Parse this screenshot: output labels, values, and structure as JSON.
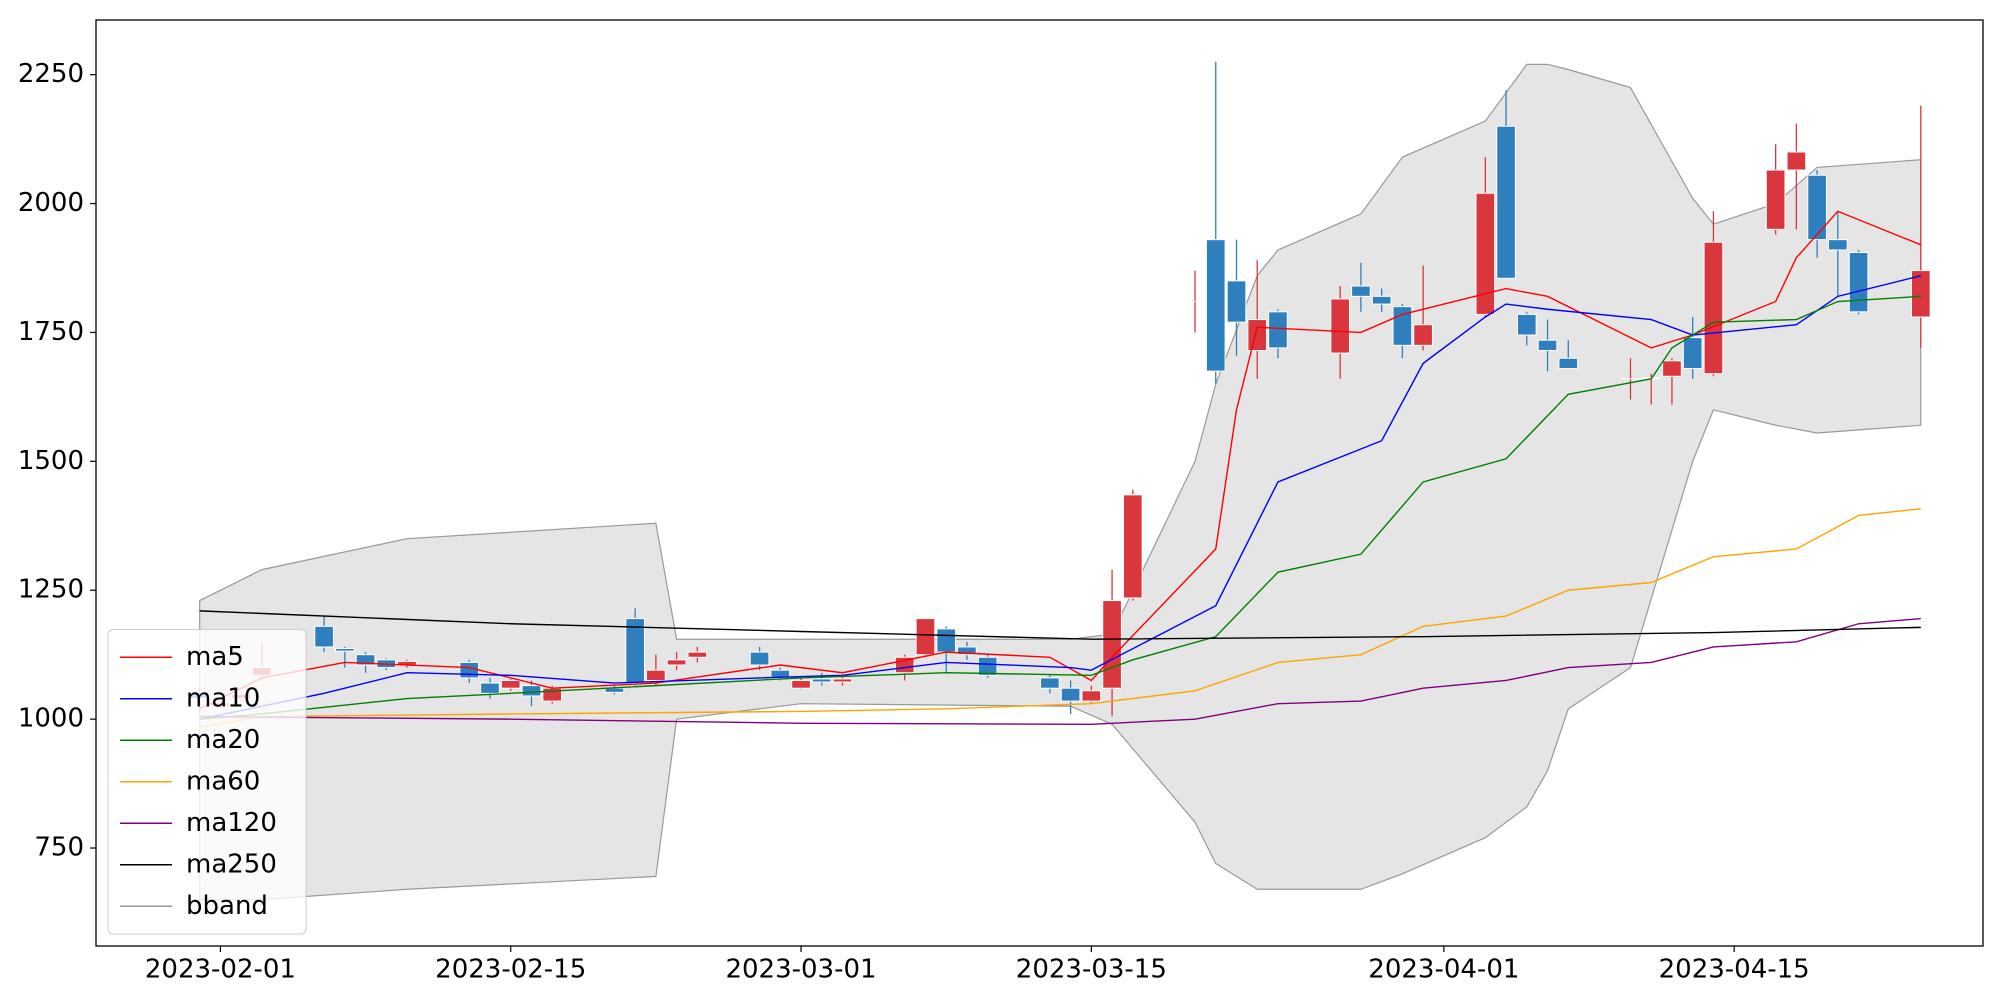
{
  "chart_data": {
    "type": "candlestick",
    "x": [
      "2023-01-31",
      "2023-02-01",
      "2023-02-02",
      "2023-02-03",
      "2023-02-06",
      "2023-02-07",
      "2023-02-08",
      "2023-02-09",
      "2023-02-10",
      "2023-02-13",
      "2023-02-14",
      "2023-02-15",
      "2023-02-16",
      "2023-02-17",
      "2023-02-20",
      "2023-02-21",
      "2023-02-22",
      "2023-02-23",
      "2023-02-24",
      "2023-02-27",
      "2023-02-28",
      "2023-03-01",
      "2023-03-02",
      "2023-03-03",
      "2023-03-06",
      "2023-03-07",
      "2023-03-08",
      "2023-03-09",
      "2023-03-10",
      "2023-03-13",
      "2023-03-14",
      "2023-03-15",
      "2023-03-16",
      "2023-03-17",
      "2023-03-20",
      "2023-03-21",
      "2023-03-22",
      "2023-03-23",
      "2023-03-24",
      "2023-03-27",
      "2023-03-28",
      "2023-03-29",
      "2023-03-30",
      "2023-03-31",
      "2023-04-03",
      "2023-04-04",
      "2023-04-05",
      "2023-04-06",
      "2023-04-07",
      "2023-04-10",
      "2023-04-11",
      "2023-04-12",
      "2023-04-13",
      "2023-04-14",
      "2023-04-17",
      "2023-04-18",
      "2023-04-19",
      "2023-04-20",
      "2023-04-21",
      "2023-04-24"
    ],
    "open": [
      1050,
      1025,
      1040,
      1085,
      1180,
      1137,
      1125,
      1115,
      1105,
      1110,
      1070,
      1060,
      1065,
      1035,
      1060,
      1195,
      1075,
      1105,
      1120,
      1130,
      1095,
      1060,
      1078,
      1072,
      1090,
      1125,
      1175,
      1140,
      1120,
      1080,
      1060,
      1035,
      1060,
      1235,
      1810,
      1930,
      1850,
      1715,
      1790,
      1710,
      1840,
      1820,
      1800,
      1725,
      1785,
      2150,
      1785,
      1735,
      1700,
      1660,
      1660,
      1665,
      1740,
      1670,
      1950,
      2065,
      2055,
      1930,
      1905,
      1780
    ],
    "high": [
      1060,
      1035,
      1050,
      1150,
      1200,
      1140,
      1130,
      1118,
      1115,
      1115,
      1080,
      1078,
      1075,
      1065,
      1065,
      1215,
      1125,
      1130,
      1140,
      1140,
      1100,
      1080,
      1090,
      1085,
      1125,
      1195,
      1180,
      1150,
      1125,
      1085,
      1075,
      1065,
      1290,
      1445,
      1870,
      2275,
      1930,
      1890,
      1795,
      1840,
      1885,
      1835,
      1805,
      1880,
      2090,
      2220,
      1790,
      1775,
      1735,
      1700,
      1670,
      1700,
      1780,
      1985,
      2115,
      2155,
      2065,
      1985,
      1910,
      2190
    ],
    "low": [
      1015,
      1020,
      1035,
      1075,
      1130,
      1100,
      1090,
      1095,
      1100,
      1070,
      1040,
      1055,
      1025,
      1030,
      1048,
      1065,
      1065,
      1095,
      1110,
      1095,
      1075,
      1058,
      1065,
      1065,
      1075,
      1120,
      1090,
      1115,
      1080,
      1050,
      1010,
      1030,
      1005,
      1230,
      1750,
      1650,
      1705,
      1660,
      1700,
      1660,
      1790,
      1790,
      1700,
      1715,
      1780,
      1855,
      1725,
      1675,
      1680,
      1620,
      1610,
      1610,
      1660,
      1665,
      1940,
      1950,
      1895,
      1820,
      1785,
      1720
    ],
    "close": [
      1040,
      1032,
      1048,
      1100,
      1140,
      1132,
      1105,
      1100,
      1112,
      1080,
      1050,
      1075,
      1045,
      1060,
      1052,
      1070,
      1095,
      1115,
      1130,
      1105,
      1080,
      1075,
      1072,
      1078,
      1120,
      1195,
      1130,
      1125,
      1085,
      1060,
      1035,
      1055,
      1230,
      1435,
      1810,
      1675,
      1770,
      1775,
      1720,
      1815,
      1820,
      1805,
      1725,
      1765,
      2020,
      1855,
      1745,
      1715,
      1680,
      1660,
      1662,
      1695,
      1680,
      1925,
      2065,
      2100,
      1930,
      1910,
      1790,
      1870
    ],
    "up_color": "#d9363e",
    "down_color": "#2f7fbf",
    "lines": [
      {
        "name": "ma5",
        "color": "#ff0000",
        "x": [
          "2023-01-31",
          "2023-02-03",
          "2023-02-07",
          "2023-02-13",
          "2023-02-17",
          "2023-02-22",
          "2023-02-28",
          "2023-03-03",
          "2023-03-08",
          "2023-03-13",
          "2023-03-15",
          "2023-03-16",
          "2023-03-21",
          "2023-03-22",
          "2023-03-23",
          "2023-03-28",
          "2023-03-30",
          "2023-04-04",
          "2023-04-06",
          "2023-04-11",
          "2023-04-13",
          "2023-04-17",
          "2023-04-18",
          "2023-04-20",
          "2023-04-24"
        ],
        "values": [
          1020,
          1080,
          1110,
          1100,
          1060,
          1070,
          1105,
          1090,
          1130,
          1120,
          1075,
          1120,
          1330,
          1600,
          1760,
          1750,
          1785,
          1835,
          1820,
          1720,
          1745,
          1810,
          1895,
          1985,
          1920
        ]
      },
      {
        "name": "ma10",
        "color": "#0000ff",
        "x": [
          "2023-01-31",
          "2023-02-06",
          "2023-02-10",
          "2023-02-15",
          "2023-02-20",
          "2023-02-27",
          "2023-03-03",
          "2023-03-08",
          "2023-03-14",
          "2023-03-15",
          "2023-03-21",
          "2023-03-24",
          "2023-03-29",
          "2023-03-31",
          "2023-04-03",
          "2023-04-04",
          "2023-04-06",
          "2023-04-11",
          "2023-04-13",
          "2023-04-18",
          "2023-04-20",
          "2023-04-24"
        ],
        "values": [
          1000,
          1050,
          1090,
          1085,
          1070,
          1080,
          1085,
          1110,
          1100,
          1095,
          1220,
          1460,
          1540,
          1690,
          1780,
          1805,
          1795,
          1775,
          1745,
          1765,
          1820,
          1860
        ]
      },
      {
        "name": "ma20",
        "color": "#008000",
        "x": [
          "2023-01-31",
          "2023-02-03",
          "2023-02-10",
          "2023-02-15",
          "2023-02-22",
          "2023-03-01",
          "2023-03-08",
          "2023-03-15",
          "2023-03-17",
          "2023-03-21",
          "2023-03-24",
          "2023-03-28",
          "2023-03-31",
          "2023-04-04",
          "2023-04-07",
          "2023-04-11",
          "2023-04-12",
          "2023-04-14",
          "2023-04-18",
          "2023-04-20",
          "2023-04-24"
        ],
        "values": [
          1000,
          1010,
          1040,
          1050,
          1065,
          1080,
          1090,
          1085,
          1115,
          1160,
          1285,
          1320,
          1460,
          1505,
          1630,
          1660,
          1720,
          1770,
          1775,
          1810,
          1820
        ]
      },
      {
        "name": "ma60",
        "color": "#ffa500",
        "x": [
          "2023-01-31",
          "2023-02-03",
          "2023-02-15",
          "2023-03-01",
          "2023-03-08",
          "2023-03-15",
          "2023-03-20",
          "2023-03-24",
          "2023-03-28",
          "2023-03-31",
          "2023-04-04",
          "2023-04-07",
          "2023-04-11",
          "2023-04-14",
          "2023-04-18",
          "2023-04-21",
          "2023-04-24"
        ],
        "values": [
          985,
          1005,
          1010,
          1015,
          1020,
          1030,
          1055,
          1110,
          1125,
          1180,
          1200,
          1250,
          1265,
          1315,
          1330,
          1395,
          1408
        ]
      },
      {
        "name": "ma120",
        "color": "#800080",
        "x": [
          "2023-01-31",
          "2023-02-15",
          "2023-03-01",
          "2023-03-15",
          "2023-03-20",
          "2023-03-24",
          "2023-03-28",
          "2023-03-31",
          "2023-04-04",
          "2023-04-07",
          "2023-04-11",
          "2023-04-14",
          "2023-04-18",
          "2023-04-21",
          "2023-04-24"
        ],
        "values": [
          1005,
          1000,
          992,
          990,
          1000,
          1030,
          1035,
          1060,
          1075,
          1100,
          1110,
          1140,
          1150,
          1185,
          1195
        ]
      },
      {
        "name": "ma250",
        "color": "#000000",
        "x": [
          "2023-01-31",
          "2023-02-15",
          "2023-03-01",
          "2023-03-15",
          "2023-03-31",
          "2023-04-14",
          "2023-04-24"
        ],
        "values": [
          1210,
          1185,
          1170,
          1155,
          1160,
          1168,
          1178
        ]
      }
    ],
    "bband": {
      "name": "bband",
      "color": "#999999",
      "fill": "#e5e5e5",
      "x": [
        "2023-01-31",
        "2023-02-03",
        "2023-02-10",
        "2023-02-22",
        "2023-02-23",
        "2023-03-01",
        "2023-03-14",
        "2023-03-16",
        "2023-03-20",
        "2023-03-21",
        "2023-03-23",
        "2023-03-24",
        "2023-03-28",
        "2023-03-30",
        "2023-04-03",
        "2023-04-05",
        "2023-04-06",
        "2023-04-07",
        "2023-04-10",
        "2023-04-13",
        "2023-04-14",
        "2023-04-17",
        "2023-04-19",
        "2023-04-24"
      ],
      "upper": [
        1230,
        1290,
        1350,
        1380,
        1155,
        1155,
        1155,
        1165,
        1500,
        1650,
        1860,
        1910,
        1980,
        2090,
        2160,
        2270,
        2270,
        2260,
        2225,
        2010,
        1960,
        2000,
        2070,
        2085
      ],
      "lower": [
        650,
        650,
        670,
        695,
        1000,
        1030,
        1025,
        990,
        800,
        720,
        670,
        670,
        670,
        700,
        770,
        830,
        900,
        1020,
        1100,
        1500,
        1600,
        1570,
        1555,
        1570
      ]
    },
    "xlim": [
      "2023-01-26",
      "2023-04-27"
    ],
    "ylim": [
      560,
      2356
    ],
    "xticks": [
      "2023-02-01",
      "2023-02-15",
      "2023-03-01",
      "2023-03-15",
      "2023-04-01",
      "2023-04-15"
    ],
    "yticks": [
      750,
      1000,
      1250,
      1500,
      1750,
      2000,
      2250
    ],
    "legend": "lower left"
  }
}
